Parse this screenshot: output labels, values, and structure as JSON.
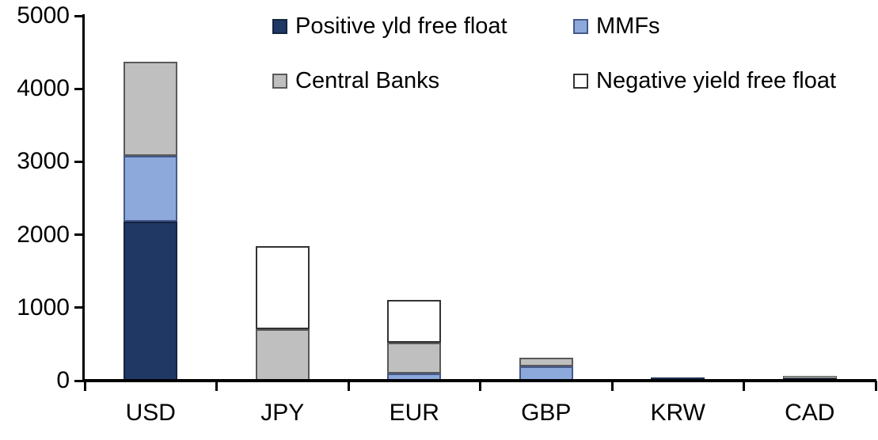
{
  "chart_data": {
    "type": "bar",
    "stacked": true,
    "title": "",
    "xlabel": "",
    "ylabel": "",
    "categories": [
      "USD",
      "JPY",
      "EUR",
      "GBP",
      "KRW",
      "CAD"
    ],
    "series": [
      {
        "name": "Positive yld free float",
        "color": "#1F3864",
        "border_color": "#15243E",
        "values": [
          2180,
          0,
          0,
          0,
          45,
          30
        ]
      },
      {
        "name": "MMFs",
        "color": "#8DA9DB",
        "border_color": "#44598C",
        "values": [
          900,
          0,
          100,
          195,
          0,
          0
        ]
      },
      {
        "name": "Central Banks",
        "color": "#BFBFBF",
        "border_color": "#595959",
        "values": [
          1290,
          700,
          420,
          120,
          0,
          30
        ]
      },
      {
        "name": "Negative yield free float",
        "color": "#FFFFFF",
        "border_color": "#333333",
        "values": [
          0,
          1140,
          590,
          0,
          0,
          0
        ]
      }
    ],
    "ylim": [
      0,
      5000
    ],
    "yticks": [
      0,
      1000,
      2000,
      3000,
      4000,
      5000
    ],
    "grid": false,
    "legend_position": "top",
    "axis_color": "#000000",
    "text_color": "#000000"
  }
}
